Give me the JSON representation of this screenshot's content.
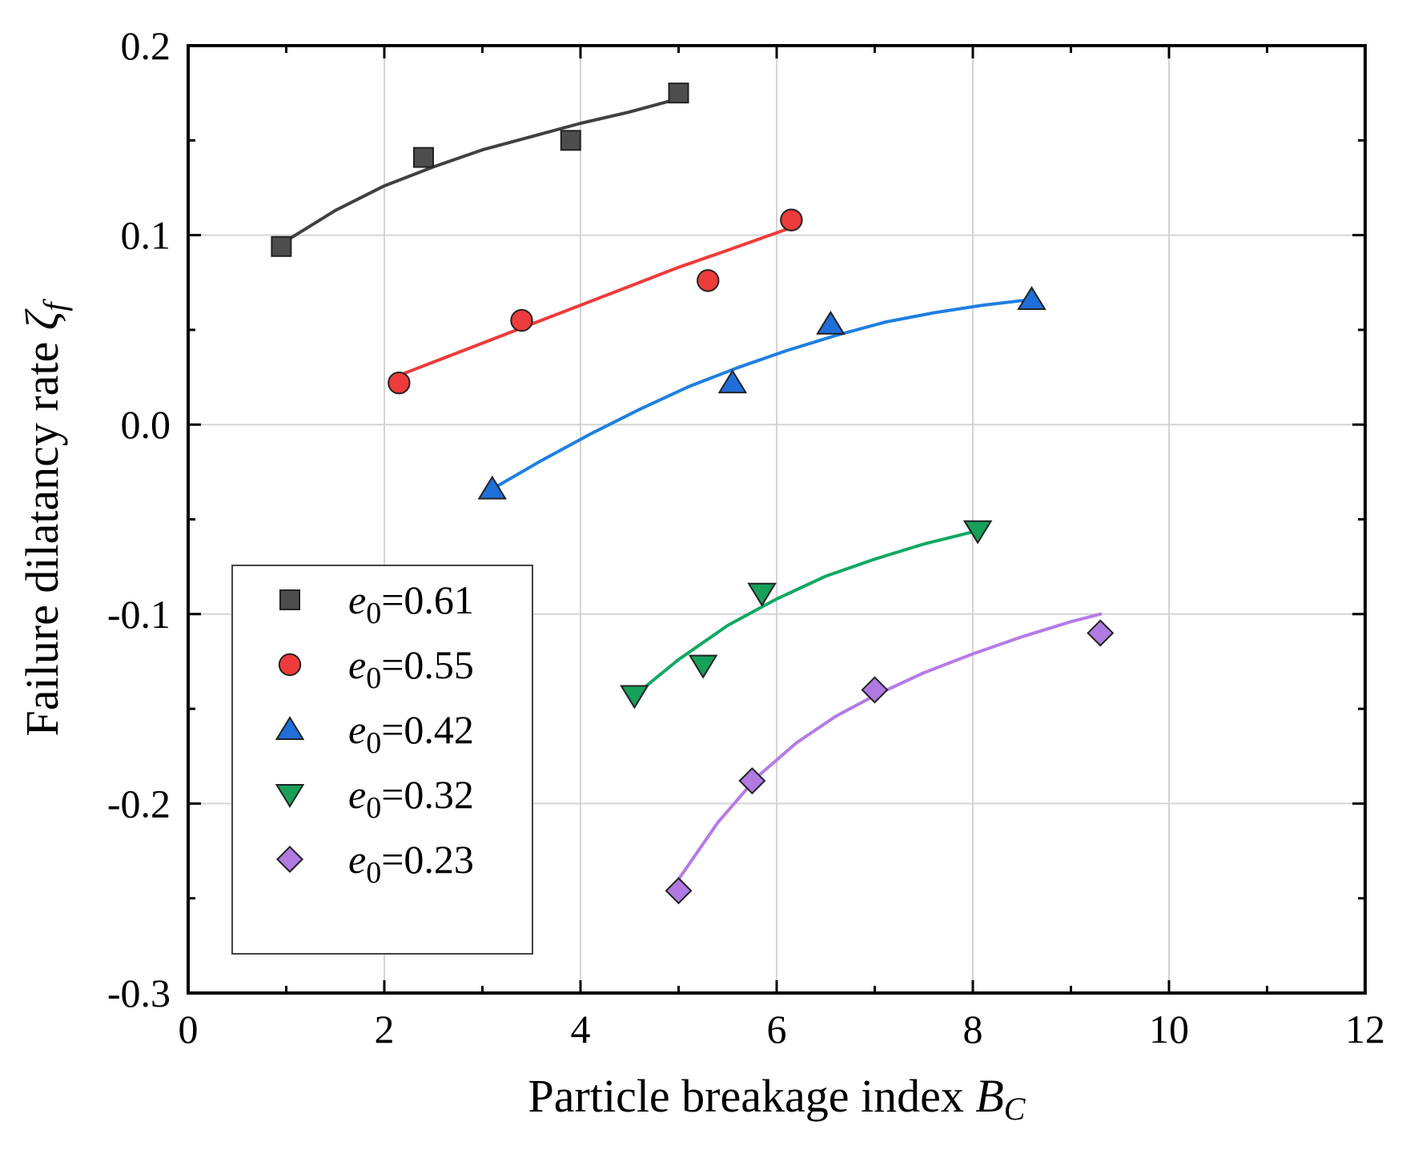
{
  "chart_data": {
    "type": "scatter",
    "title": "",
    "xlabel": "Particle breakage index",
    "xlabel_symbol": "B",
    "xlabel_subscript": "C",
    "ylabel": "Failure dilatancy rate",
    "ylabel_symbol": "ζ",
    "ylabel_subscript": "f",
    "xlim": [
      0,
      12
    ],
    "ylim": [
      -0.3,
      0.2
    ],
    "xticks": [
      0,
      2,
      4,
      6,
      8,
      10,
      12
    ],
    "xtick_labels": [
      "0",
      "2",
      "4",
      "6",
      "8",
      "10",
      "12"
    ],
    "yticks": [
      -0.3,
      -0.2,
      -0.1,
      0.0,
      0.1,
      0.2
    ],
    "ytick_labels": [
      "-0.3",
      "-0.2",
      "-0.1",
      "0.0",
      "0.1",
      "0.2"
    ],
    "grid": true,
    "legend_position": "bottom-left",
    "series": [
      {
        "name": "e0=0.61",
        "legend_symbol": "e",
        "legend_subscript": "0",
        "legend_value": "=0.61",
        "marker": "square",
        "color": "#4d4d4d",
        "line_color": "#404040",
        "x": [
          0.95,
          2.4,
          3.9,
          5.0
        ],
        "y": [
          0.094,
          0.141,
          0.15,
          0.175
        ],
        "fit_x": [
          1.0,
          1.5,
          2.0,
          2.5,
          3.0,
          3.5,
          4.0,
          4.5,
          5.0
        ],
        "fit_y": [
          0.097,
          0.113,
          0.126,
          0.136,
          0.145,
          0.152,
          0.159,
          0.165,
          0.172
        ]
      },
      {
        "name": "e0=0.55",
        "legend_symbol": "e",
        "legend_subscript": "0",
        "legend_value": "=0.55",
        "marker": "circle",
        "color": "#ee3b3b",
        "line_color": "#ee3b3b",
        "x": [
          2.15,
          3.4,
          5.3,
          6.15
        ],
        "y": [
          0.022,
          0.055,
          0.076,
          0.108
        ],
        "fit_x": [
          2.15,
          2.5,
          3.0,
          3.5,
          4.0,
          4.5,
          5.0,
          5.5,
          6.15
        ],
        "fit_y": [
          0.026,
          0.033,
          0.043,
          0.053,
          0.063,
          0.073,
          0.083,
          0.092,
          0.104
        ]
      },
      {
        "name": "e0=0.42",
        "legend_symbol": "e",
        "legend_subscript": "0",
        "legend_value": "=0.42",
        "marker": "triangle-up",
        "color": "#1e6fd9",
        "line_color": "#1e7fe0",
        "x": [
          3.1,
          5.55,
          6.55,
          8.6
        ],
        "y": [
          -0.034,
          0.022,
          0.053,
          0.066
        ],
        "fit_x": [
          3.1,
          3.6,
          4.1,
          4.6,
          5.1,
          5.6,
          6.1,
          6.6,
          7.1,
          7.6,
          8.1,
          8.6
        ],
        "fit_y": [
          -0.034,
          -0.019,
          -0.005,
          0.008,
          0.02,
          0.03,
          0.039,
          0.047,
          0.054,
          0.059,
          0.063,
          0.066
        ]
      },
      {
        "name": "e0=0.32",
        "legend_symbol": "e",
        "legend_subscript": "0",
        "legend_value": "=0.32",
        "marker": "triangle-down",
        "color": "#16a05a",
        "line_color": "#12a865",
        "x": [
          4.55,
          5.25,
          5.85,
          8.05
        ],
        "y": [
          -0.143,
          -0.127,
          -0.089,
          -0.056
        ],
        "fit_x": [
          4.55,
          5.0,
          5.5,
          6.0,
          6.5,
          7.0,
          7.5,
          8.05
        ],
        "fit_y": [
          -0.143,
          -0.124,
          -0.106,
          -0.092,
          -0.08,
          -0.071,
          -0.063,
          -0.056
        ]
      },
      {
        "name": "e0=0.23",
        "legend_symbol": "e",
        "legend_subscript": "0",
        "legend_value": "=0.23",
        "marker": "diamond",
        "color": "#b07ae0",
        "line_color": "#b57be6",
        "x": [
          5.0,
          5.75,
          7.0,
          9.3
        ],
        "y": [
          -0.246,
          -0.188,
          -0.14,
          -0.11
        ],
        "fit_x": [
          5.0,
          5.4,
          5.8,
          6.2,
          6.6,
          7.0,
          7.5,
          8.0,
          8.5,
          9.0,
          9.3
        ],
        "fit_y": [
          -0.24,
          -0.21,
          -0.186,
          -0.168,
          -0.154,
          -0.143,
          -0.131,
          -0.121,
          -0.112,
          -0.104,
          -0.1
        ]
      }
    ]
  }
}
